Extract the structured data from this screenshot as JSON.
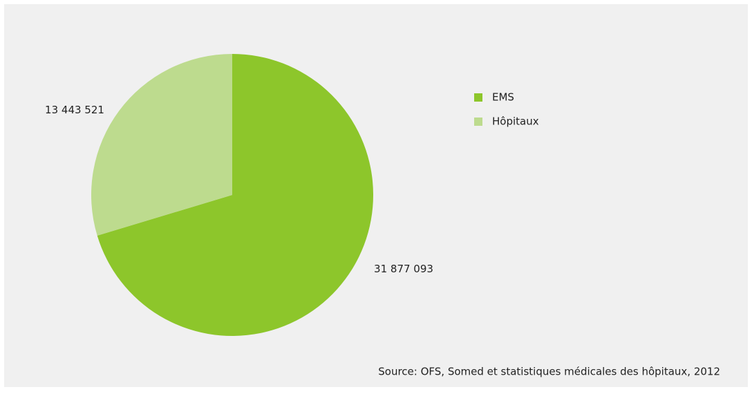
{
  "chart_data": {
    "type": "pie",
    "categories": [
      "EMS",
      "Hôpitaux"
    ],
    "values": [
      31877093,
      13443521
    ],
    "value_labels": [
      "31 877 093",
      "13 443 521"
    ],
    "colors": [
      "#8dc62b",
      "#bddb8e"
    ],
    "source": "Source: OFS, Somed et statistiques médicales des hôpitaux, 2012"
  }
}
